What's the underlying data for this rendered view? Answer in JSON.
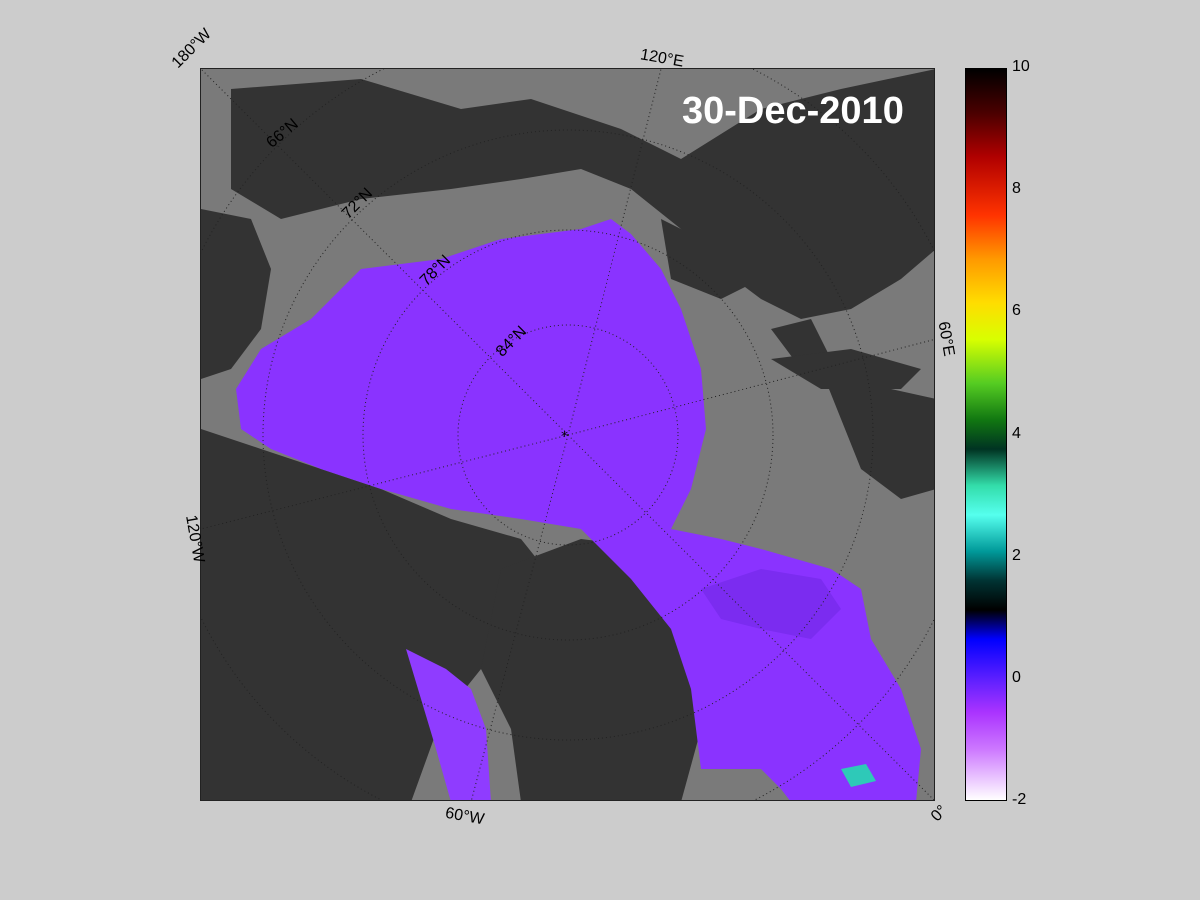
{
  "date_label": "30-Dec-2010",
  "map": {
    "longitude_labels": [
      "180°W",
      "120°E",
      "60°E",
      "0°",
      "60°W",
      "120°W"
    ],
    "latitude_labels": [
      "66°N",
      "72°N",
      "78°N",
      "84°N"
    ],
    "colors": {
      "ocean": "#7a7a7a",
      "land": "#333333",
      "ice_primary": "#8a33ff",
      "ice_secondary": "#7b2cf0",
      "frame_bg": "#7a7a7a"
    }
  },
  "colorbar": {
    "min": -2,
    "max": 10,
    "ticks": [
      "10",
      "8",
      "6",
      "4",
      "2",
      "0",
      "-2"
    ]
  }
}
